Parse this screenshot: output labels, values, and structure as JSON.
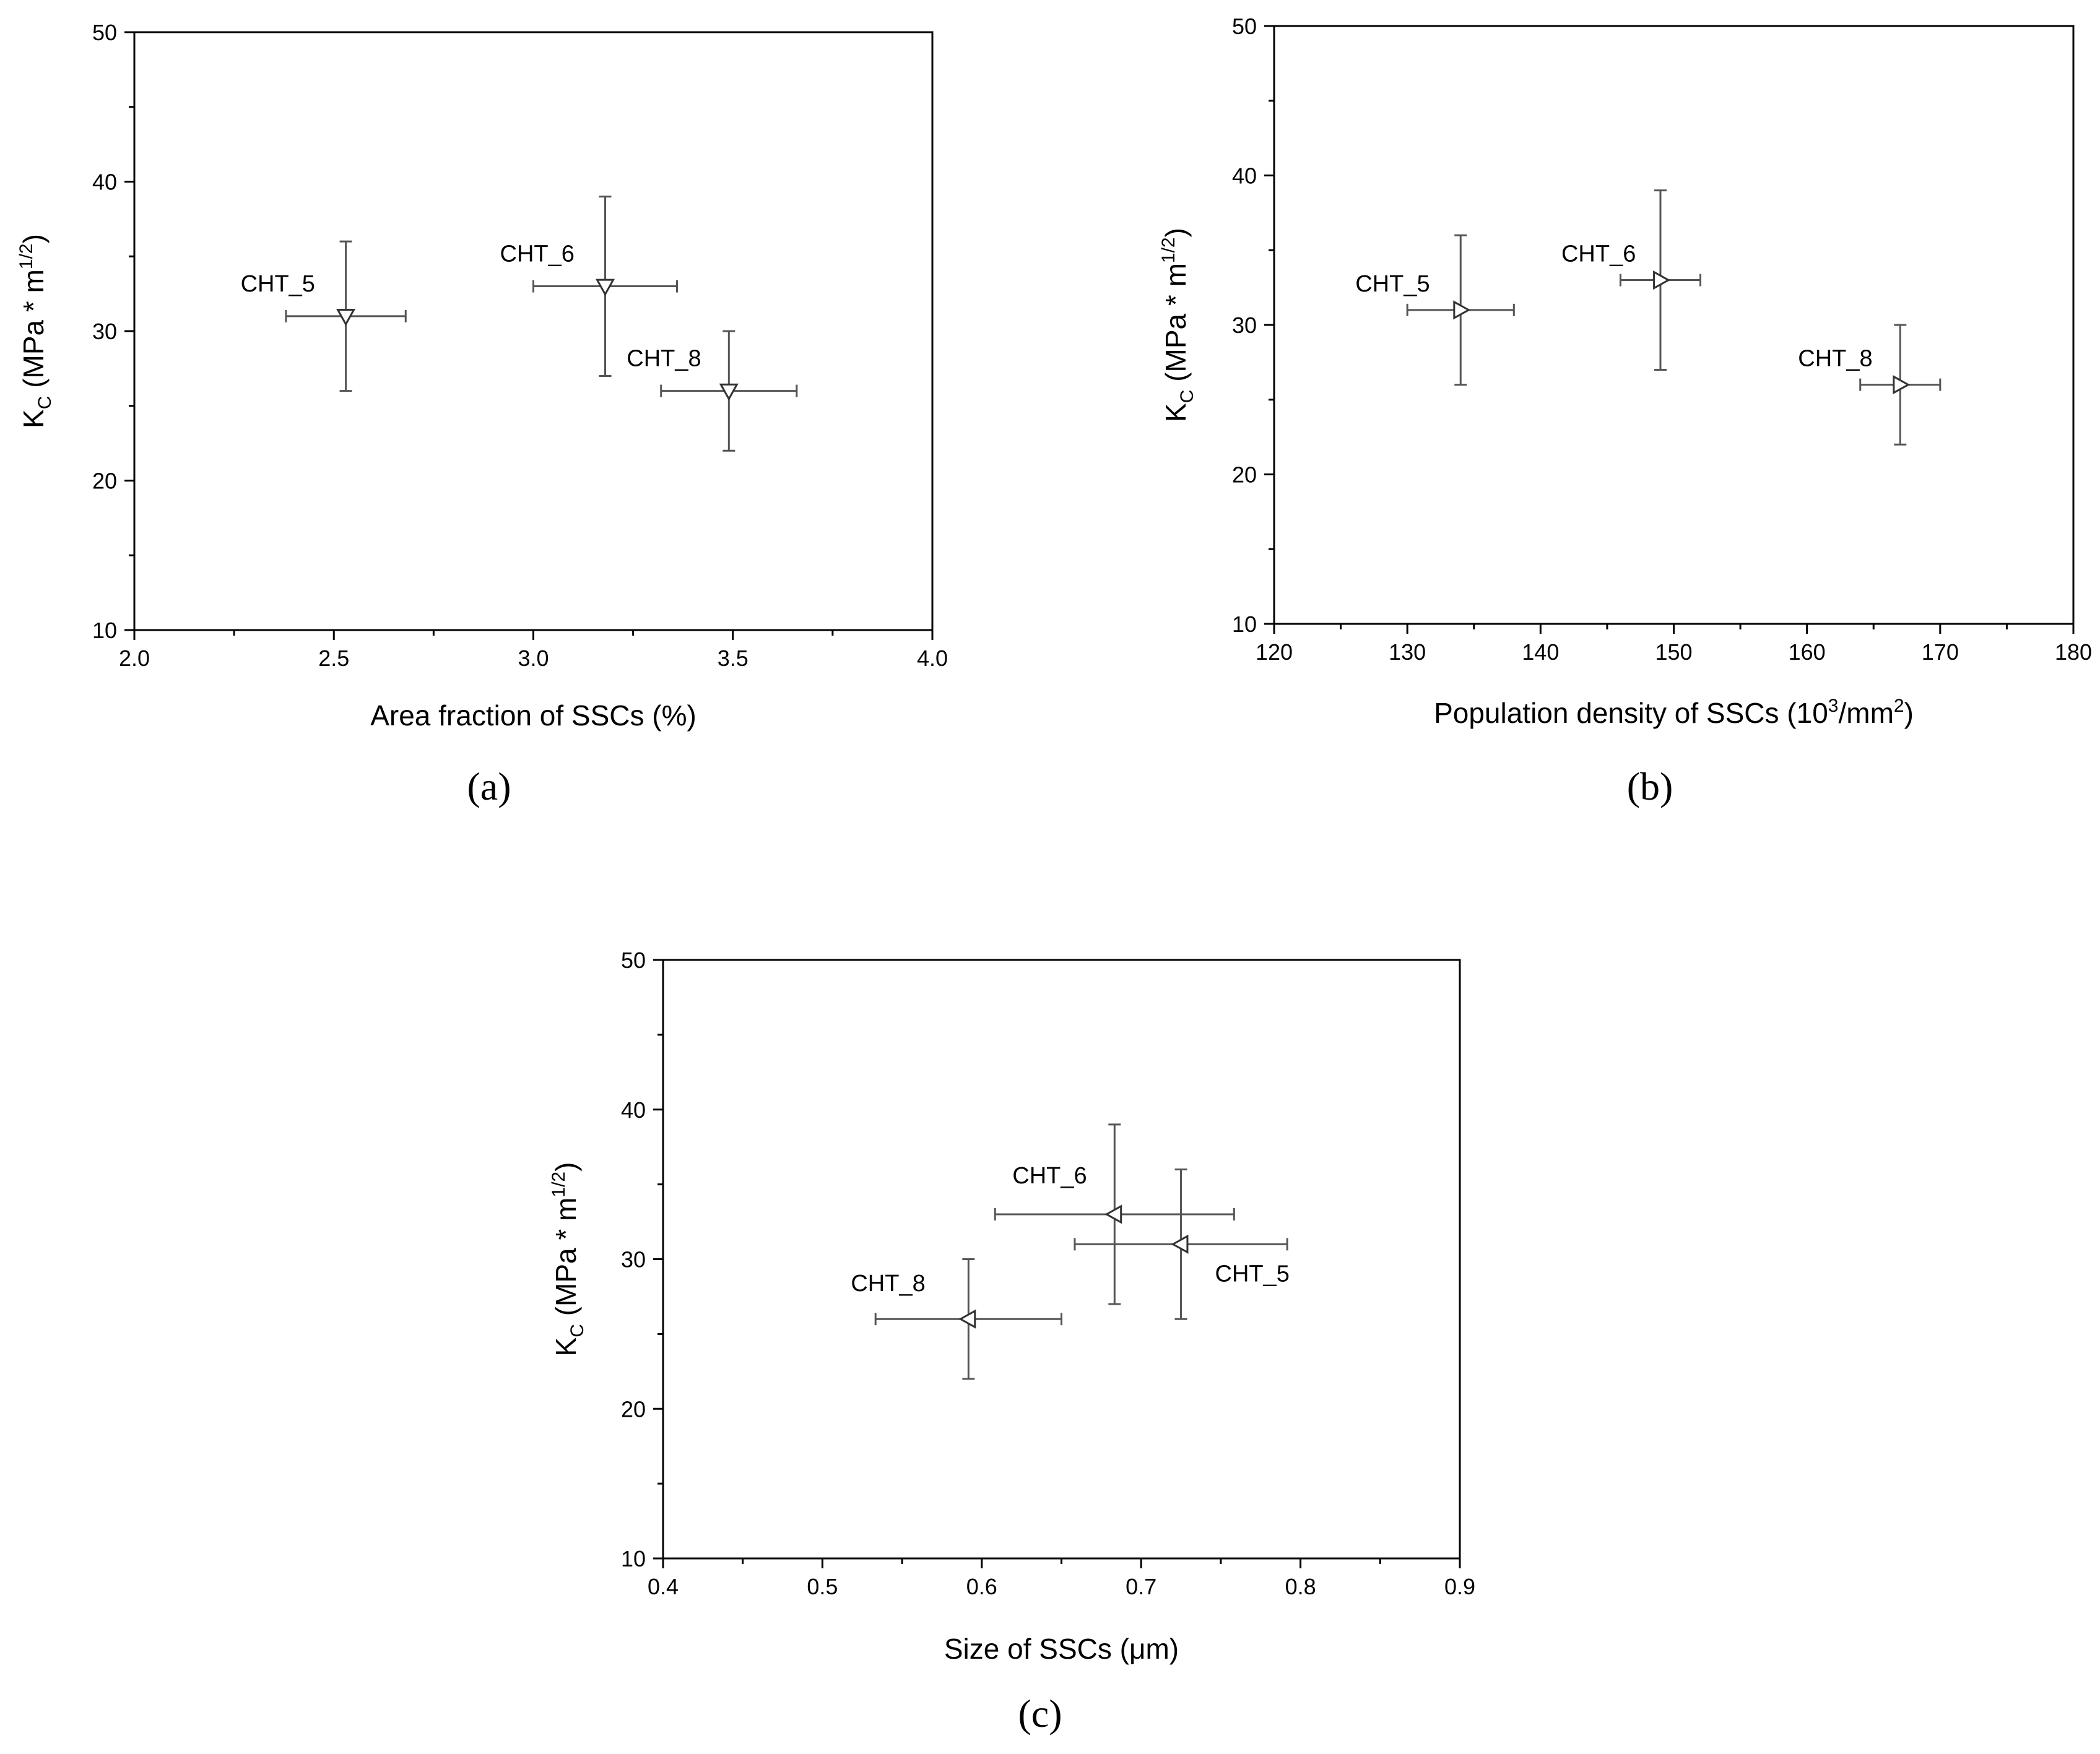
{
  "chart_data": [
    {
      "type": "scatter",
      "panel": "(a)",
      "xlabel": "Area fraction of SSCs (%)",
      "ylabel": {
        "main": "K",
        "sub": "C",
        "unit_pre": " (MPa * m",
        "unit_sup": "1/2",
        "unit_post": ")"
      },
      "xlim": [
        2.0,
        4.0
      ],
      "ylim": [
        10,
        50
      ],
      "xticks": [
        "2.0",
        "2.5",
        "3.0",
        "3.5",
        "4.0"
      ],
      "yticks": [
        "10",
        "20",
        "30",
        "40",
        "50"
      ],
      "marker": "triangle-down",
      "points": [
        {
          "label": "CHT_5",
          "x": 2.53,
          "y": 31,
          "xerr": 0.15,
          "yerr": 5
        },
        {
          "label": "CHT_6",
          "x": 3.18,
          "y": 33,
          "xerr": 0.18,
          "yerr": 6
        },
        {
          "label": "CHT_8",
          "x": 3.49,
          "y": 26,
          "xerr": 0.17,
          "yerr": 4
        }
      ]
    },
    {
      "type": "scatter",
      "panel": "(b)",
      "xlabel": {
        "pre": "Population density of SSCs (10",
        "sup": "3",
        "mid": "/mm",
        "sup2": "2",
        "post": ")"
      },
      "ylabel": {
        "main": "K",
        "sub": "C",
        "unit_pre": " (MPa * m",
        "unit_sup": "1/2",
        "unit_post": ")"
      },
      "xlim": [
        120,
        180
      ],
      "ylim": [
        10,
        50
      ],
      "xticks": [
        "120",
        "130",
        "140",
        "150",
        "160",
        "170",
        "180"
      ],
      "yticks": [
        "10",
        "20",
        "30",
        "40",
        "50"
      ],
      "marker": "triangle-right",
      "points": [
        {
          "label": "CHT_5",
          "x": 134,
          "y": 31,
          "xerr": 4,
          "yerr": 5
        },
        {
          "label": "CHT_6",
          "x": 149,
          "y": 33,
          "xerr": 3,
          "yerr": 6
        },
        {
          "label": "CHT_8",
          "x": 167,
          "y": 26,
          "xerr": 3,
          "yerr": 4
        }
      ]
    },
    {
      "type": "scatter",
      "panel": "(c)",
      "xlabel": "Size of SSCs (μm)",
      "ylabel": {
        "main": "K",
        "sub": "C",
        "unit_pre": " (MPa * m",
        "unit_sup": "1/2",
        "unit_post": ")"
      },
      "xlim": [
        0.35,
        0.95
      ],
      "ylim": [
        10,
        50
      ],
      "xticks": [
        "0.4",
        "0.5",
        "0.6",
        "0.7",
        "0.8",
        "0.9"
      ],
      "yticks": [
        "10",
        "20",
        "30",
        "40",
        "50"
      ],
      "marker": "triangle-left",
      "points": [
        {
          "label": "CHT_8",
          "x": 0.58,
          "y": 26,
          "xerr": 0.07,
          "yerr": 4
        },
        {
          "label": "CHT_6",
          "x": 0.69,
          "y": 33,
          "xerr": 0.09,
          "yerr": 6
        },
        {
          "label": "CHT_5",
          "x": 0.74,
          "y": 31,
          "xerr": 0.08,
          "yerr": 5
        }
      ]
    }
  ],
  "colors": {
    "axis": "#000000",
    "marker": "#333333",
    "errorbar": "#555555"
  }
}
